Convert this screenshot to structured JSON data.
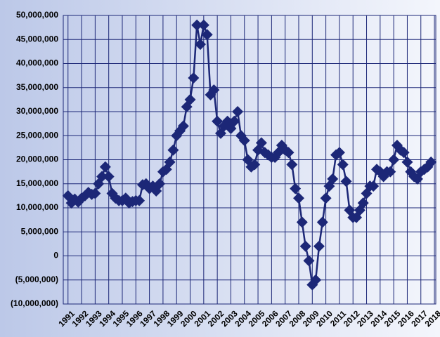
{
  "chart_data": {
    "type": "line",
    "x": [
      1991,
      1991.25,
      1991.5,
      1991.75,
      1992,
      1992.25,
      1992.5,
      1992.75,
      1993,
      1993.25,
      1993.5,
      1993.75,
      1994,
      1994.25,
      1994.5,
      1994.75,
      1995,
      1995.25,
      1995.5,
      1995.75,
      1996,
      1996.25,
      1996.5,
      1996.75,
      1997,
      1997.25,
      1997.5,
      1997.75,
      1998,
      1998.25,
      1998.5,
      1998.75,
      1999,
      1999.25,
      1999.5,
      1999.75,
      2000,
      2000.25,
      2000.5,
      2000.75,
      2001,
      2001.25,
      2001.5,
      2001.75,
      2002,
      2002.25,
      2002.5,
      2002.75,
      2003,
      2003.25,
      2003.5,
      2003.75,
      2004,
      2004.25,
      2004.5,
      2004.75,
      2005,
      2005.25,
      2005.5,
      2005.75,
      2006,
      2006.25,
      2006.5,
      2006.75,
      2007,
      2007.25,
      2007.5,
      2007.75,
      2008,
      2008.25,
      2008.5,
      2008.75,
      2009,
      2009.25,
      2009.5,
      2009.75,
      2010,
      2010.25,
      2010.5,
      2010.75,
      2011,
      2011.25,
      2011.5,
      2011.75,
      2012,
      2012.25,
      2012.5,
      2012.75,
      2013,
      2013.25,
      2013.5,
      2013.75,
      2014,
      2014.25,
      2014.5,
      2014.75,
      2015,
      2015.25,
      2015.5,
      2015.75,
      2016,
      2016.25,
      2016.5,
      2016.75,
      2017,
      2017.25,
      2017.5,
      2017.75
    ],
    "series": [
      {
        "color": "#1c2777",
        "values": [
          12500000,
          11000000,
          11800000,
          11200000,
          12000000,
          12500000,
          13200000,
          12800000,
          13000000,
          15000000,
          16500000,
          18500000,
          16500000,
          13000000,
          12000000,
          11500000,
          11500000,
          12000000,
          11000000,
          11300000,
          11500000,
          11500000,
          14800000,
          15000000,
          14000000,
          14500000,
          13500000,
          15000000,
          17500000,
          18000000,
          19500000,
          22000000,
          25000000,
          26000000,
          27000000,
          31000000,
          32500000,
          37000000,
          48000000,
          44000000,
          48000000,
          46000000,
          33500000,
          34500000,
          28000000,
          25500000,
          27000000,
          28000000,
          26500000,
          28000000,
          30000000,
          25000000,
          24000000,
          20000000,
          18500000,
          19000000,
          22000000,
          23500000,
          21500000,
          21000000,
          20500000,
          20500000,
          21500000,
          23000000,
          22000000,
          21500000,
          19000000,
          14000000,
          12000000,
          7000000,
          2000000,
          -1000000,
          -6000000,
          -5000000,
          2000000,
          7000000,
          12000000,
          14500000,
          16000000,
          21000000,
          21500000,
          19000000,
          15500000,
          9500000,
          8000000,
          8000000,
          9500000,
          11000000,
          13000000,
          14500000,
          14500000,
          18000000,
          17500000,
          16500000,
          17500000,
          17500000,
          20000000,
          23000000,
          22000000,
          21500000,
          19500000,
          17500000,
          16500000,
          16000000,
          17500000,
          18000000,
          18500000,
          19500000
        ]
      }
    ],
    "xlim": [
      1990.65,
      2018.1
    ],
    "xticks": [
      1991,
      1992,
      1993,
      1994,
      1995,
      1996,
      1997,
      1998,
      1999,
      2000,
      2001,
      2002,
      2003,
      2004,
      2005,
      2006,
      2007,
      2008,
      2009,
      2010,
      2011,
      2012,
      2013,
      2014,
      2015,
      2016,
      2017,
      2018
    ],
    "ylim": [
      -10000000,
      50000000
    ],
    "yticks": [
      {
        "value": -10000000,
        "label": "(10,000,000)"
      },
      {
        "value": -5000000,
        "label": "(5,000,000)"
      },
      {
        "value": 0,
        "label": "0"
      },
      {
        "value": 5000000,
        "label": "5,000,000"
      },
      {
        "value": 10000000,
        "label": "10,000,000"
      },
      {
        "value": 15000000,
        "label": "15,000,000"
      },
      {
        "value": 20000000,
        "label": "20,000,000"
      },
      {
        "value": 25000000,
        "label": "25,000,000"
      },
      {
        "value": 30000000,
        "label": "30,000,000"
      },
      {
        "value": 35000000,
        "label": "35,000,000"
      },
      {
        "value": 40000000,
        "label": "40,000,000"
      },
      {
        "value": 45000000,
        "label": "45,000,000"
      },
      {
        "value": 50000000,
        "label": "50,000,000"
      }
    ],
    "grid": true
  }
}
